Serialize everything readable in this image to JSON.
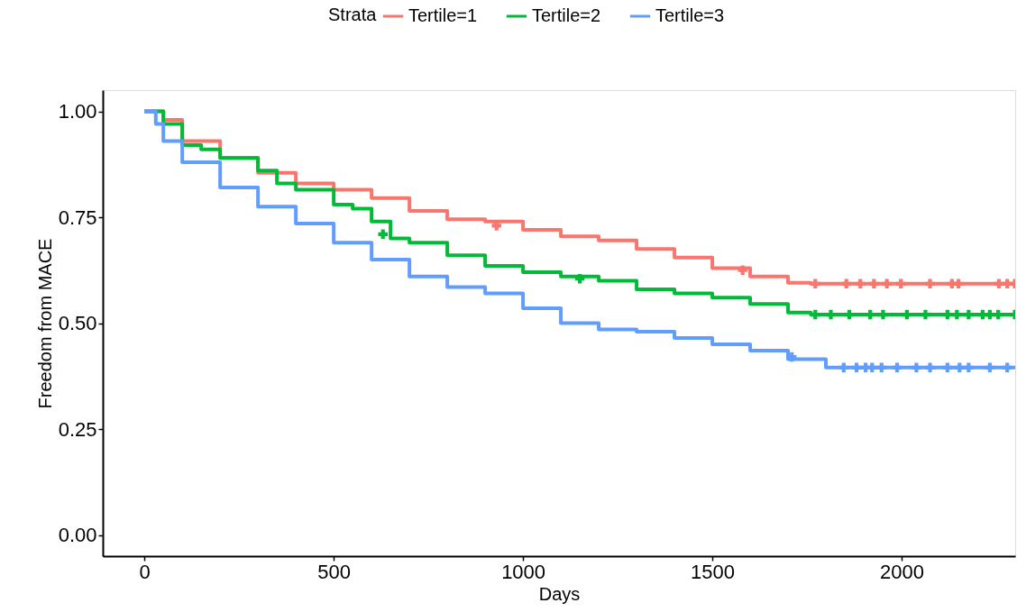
{
  "chart_data": {
    "type": "step",
    "xlabel": "Days",
    "ylabel": "Freedom from MACE",
    "legend_title": "Strata",
    "legend": "top",
    "grid": false,
    "xlim": [
      -110,
      2300
    ],
    "xticks": [
      0,
      500,
      1000,
      1500,
      2000
    ],
    "ylim": [
      -0.05,
      1.05
    ],
    "yticks": [
      {
        "value": 0,
        "label": "0.00"
      },
      {
        "value": 0.25,
        "label": "0.25"
      },
      {
        "value": 0.5,
        "label": "0.50"
      },
      {
        "value": 0.75,
        "label": "0.75"
      },
      {
        "value": 1,
        "label": "1.00"
      }
    ],
    "series": [
      {
        "name": "Tertile=1",
        "color": "#f8766d",
        "x": [
          0,
          50,
          100,
          200,
          300,
          400,
          500,
          600,
          700,
          800,
          900,
          1000,
          1100,
          1200,
          1300,
          1400,
          1500,
          1600,
          1700,
          1760,
          2300
        ],
        "values": [
          1.0,
          0.98,
          0.93,
          0.89,
          0.855,
          0.83,
          0.815,
          0.795,
          0.765,
          0.745,
          0.74,
          0.72,
          0.705,
          0.695,
          0.675,
          0.655,
          0.63,
          0.61,
          0.595,
          0.593,
          0.593
        ]
      },
      {
        "name": "Tertile=2",
        "color": "#00ba38",
        "x": [
          0,
          50,
          100,
          150,
          200,
          300,
          350,
          400,
          500,
          550,
          600,
          650,
          700,
          800,
          900,
          1000,
          1100,
          1200,
          1300,
          1400,
          1500,
          1600,
          1700,
          1760,
          2300
        ],
        "values": [
          1.0,
          0.97,
          0.92,
          0.91,
          0.89,
          0.86,
          0.83,
          0.815,
          0.78,
          0.77,
          0.74,
          0.7,
          0.69,
          0.66,
          0.635,
          0.62,
          0.61,
          0.6,
          0.58,
          0.57,
          0.56,
          0.545,
          0.525,
          0.52,
          0.52
        ]
      },
      {
        "name": "Tertile=3",
        "color": "#619cff",
        "x": [
          0,
          30,
          50,
          100,
          200,
          300,
          400,
          500,
          600,
          700,
          800,
          900,
          1000,
          1100,
          1200,
          1300,
          1400,
          1500,
          1600,
          1700,
          1800,
          2300
        ],
        "values": [
          1.0,
          0.97,
          0.93,
          0.88,
          0.82,
          0.775,
          0.735,
          0.69,
          0.65,
          0.61,
          0.585,
          0.57,
          0.535,
          0.5,
          0.485,
          0.48,
          0.465,
          0.45,
          0.435,
          0.415,
          0.395,
          0.395
        ]
      },
      {
        "type": "scatter",
        "marker": "cross",
        "color": "#f8766d",
        "x": [
          930,
          1580,
          1772,
          1854,
          1891,
          1927,
          1961,
          1998,
          2075,
          2133,
          2150,
          2257,
          2279,
          2299
        ],
        "values": [
          0.73,
          0.625,
          0.593,
          0.593,
          0.593,
          0.593,
          0.593,
          0.593,
          0.593,
          0.593,
          0.593,
          0.593,
          0.593,
          0.593
        ]
      },
      {
        "type": "scatter",
        "marker": "cross",
        "color": "#00ba38",
        "x": [
          630,
          1150,
          1772,
          1813,
          1862,
          1917,
          1951,
          2014,
          2063,
          2121,
          2146,
          2177,
          2214,
          2233,
          2255,
          2299
        ],
        "values": [
          0.71,
          0.605,
          0.52,
          0.52,
          0.52,
          0.52,
          0.52,
          0.52,
          0.52,
          0.52,
          0.52,
          0.52,
          0.52,
          0.52,
          0.52,
          0.52
        ]
      },
      {
        "type": "scatter",
        "marker": "cross",
        "color": "#619cff",
        "x": [
          1710,
          1847,
          1881,
          1905,
          1922,
          1947,
          1988,
          2039,
          2075,
          2121,
          2153,
          2177,
          2233,
          2279
        ],
        "values": [
          0.42,
          0.395,
          0.395,
          0.395,
          0.395,
          0.395,
          0.395,
          0.395,
          0.395,
          0.395,
          0.395,
          0.395,
          0.395,
          0.395
        ]
      }
    ]
  }
}
